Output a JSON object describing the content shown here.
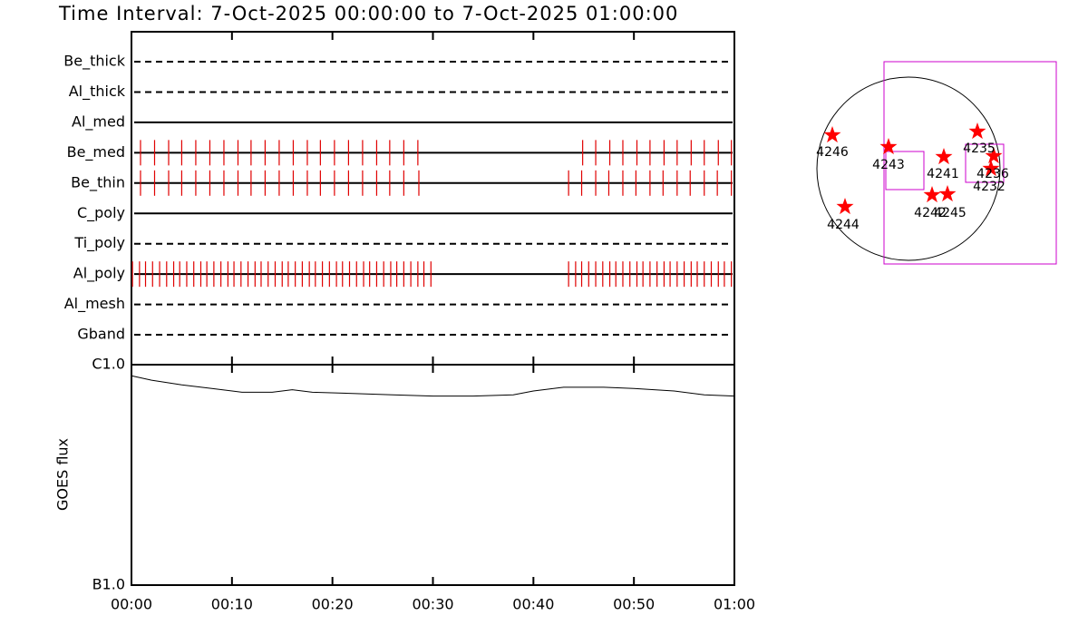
{
  "title": "Time Interval:  7-Oct-2025 00:00:00 to  7-Oct-2025 01:00:00",
  "chart_data": [
    {
      "type": "timeline",
      "xlim": [
        0,
        60
      ],
      "xticks": [
        0,
        10,
        20,
        30,
        40,
        50,
        60
      ],
      "mark_color": "#e00000",
      "rows": [
        {
          "name": "Be_thick",
          "style": "dashed",
          "times": []
        },
        {
          "name": "Al_thick",
          "style": "dashed",
          "times": []
        },
        {
          "name": "Al_med",
          "style": "solid",
          "times": []
        },
        {
          "name": "Be_med",
          "style": "solid",
          "times": [
            0.9,
            2.3,
            3.7,
            5.0,
            6.4,
            7.8,
            9.2,
            10.6,
            11.9,
            13.3,
            14.7,
            16.1,
            17.5,
            18.8,
            20.2,
            21.6,
            23.0,
            24.4,
            25.7,
            27.1,
            28.5,
            44.9,
            46.2,
            47.6,
            48.9,
            50.3,
            51.6,
            53.0,
            54.3,
            55.7,
            57.0,
            58.4,
            59.7
          ]
        },
        {
          "name": "Be_thin",
          "style": "solid",
          "times": [
            0.9,
            2.3,
            3.7,
            5.0,
            6.4,
            7.8,
            9.2,
            10.6,
            11.9,
            13.3,
            14.7,
            16.1,
            17.5,
            18.8,
            20.2,
            21.6,
            23.0,
            24.4,
            25.7,
            27.1,
            28.6,
            43.5,
            44.8,
            46.2,
            47.5,
            48.9,
            50.2,
            51.6,
            52.9,
            54.3,
            55.6,
            57.0,
            58.3,
            59.7
          ]
        },
        {
          "name": "C_poly",
          "style": "solid",
          "times": []
        },
        {
          "name": "Ti_poly",
          "style": "dashed",
          "times": []
        },
        {
          "name": "Al_poly",
          "style": "solid",
          "times": [
            0.1,
            0.8,
            1.4,
            2.1,
            2.8,
            3.5,
            4.2,
            4.8,
            5.5,
            6.2,
            6.9,
            7.5,
            8.2,
            8.9,
            9.6,
            10.2,
            10.9,
            11.6,
            12.3,
            12.9,
            13.6,
            14.3,
            15.0,
            15.6,
            16.3,
            17.0,
            17.7,
            18.3,
            19.0,
            19.7,
            20.4,
            21.0,
            21.7,
            22.4,
            23.1,
            23.7,
            24.4,
            25.1,
            25.8,
            26.4,
            27.1,
            27.8,
            28.5,
            29.1,
            29.8,
            43.5,
            44.2,
            44.8,
            45.5,
            46.2,
            46.9,
            47.6,
            48.2,
            48.9,
            49.6,
            50.3,
            50.9,
            51.6,
            52.3,
            53.0,
            53.6,
            54.3,
            55.0,
            55.7,
            56.3,
            57.0,
            57.7,
            58.4,
            59.0,
            59.7
          ]
        },
        {
          "name": "Al_mesh",
          "style": "dashed",
          "times": []
        },
        {
          "name": "Gband",
          "style": "dashed",
          "times": []
        }
      ]
    },
    {
      "type": "line",
      "ylabel": "GOES flux",
      "log": true,
      "color": "#000000",
      "x": [
        0,
        2,
        5,
        8,
        11,
        14,
        16,
        18,
        22,
        26,
        30,
        34,
        38,
        40,
        43,
        47,
        50,
        54,
        57,
        60
      ],
      "values": [
        8.9e-07,
        8.5e-07,
        8.1e-07,
        7.8e-07,
        7.5e-07,
        7.5e-07,
        7.7e-07,
        7.5e-07,
        7.4e-07,
        7.3e-07,
        7.2e-07,
        7.2e-07,
        7.3e-07,
        7.6e-07,
        7.9e-07,
        7.9e-07,
        7.8e-07,
        7.6e-07,
        7.3e-07,
        7.2e-07
      ],
      "xlim": [
        0,
        60
      ],
      "xticks": [
        {
          "value": 0,
          "label": "00:00"
        },
        {
          "value": 10,
          "label": "00:10"
        },
        {
          "value": 20,
          "label": "00:20"
        },
        {
          "value": 30,
          "label": "00:30"
        },
        {
          "value": 40,
          "label": "00:40"
        },
        {
          "value": 50,
          "label": "00:50"
        },
        {
          "value": 60,
          "label": "01:00"
        }
      ],
      "ylim": [
        1e-07,
        1e-06
      ],
      "yticks": [
        {
          "value": 1e-07,
          "label": "B1.0"
        },
        {
          "value": 1e-06,
          "label": "C1.0"
        }
      ]
    }
  ],
  "map": {
    "regions": [
      "4246",
      "4243",
      "4241",
      "4235",
      "4236",
      "4232",
      "4242",
      "4245",
      "4244"
    ]
  }
}
